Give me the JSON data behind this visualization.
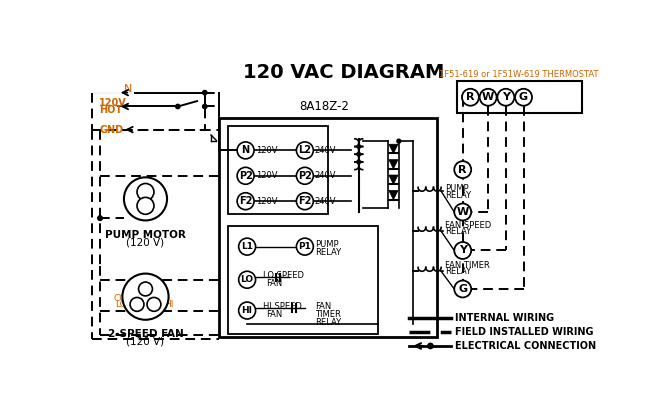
{
  "title": "120 VAC DIAGRAM",
  "background_color": "#ffffff",
  "orange": "#cc6600",
  "black": "#000000",
  "thermostat_label": "1F51-619 or 1F51W-619 THERMOSTAT",
  "control_box_label": "8A18Z-2",
  "legend_internal": "INTERNAL WIRING",
  "legend_field": "FIELD INSTALLED WIRING",
  "legend_elec": "ELECTRICAL CONNECTION",
  "fig_w": 6.7,
  "fig_h": 4.19,
  "dpi": 100
}
